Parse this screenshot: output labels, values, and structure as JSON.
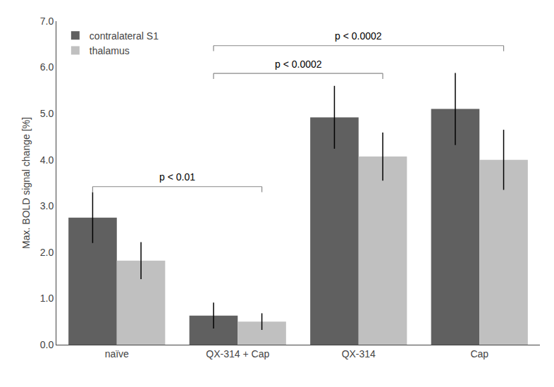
{
  "chart_data": {
    "type": "bar",
    "categories": [
      "naïve",
      "QX-314 + Cap",
      "QX-314",
      "Cap"
    ],
    "series": [
      {
        "name": "contralateral S1",
        "color": "#606060",
        "values": [
          2.75,
          0.63,
          4.92,
          5.1
        ],
        "errors": [
          0.55,
          0.28,
          0.68,
          0.78
        ]
      },
      {
        "name": "thalamus",
        "color": "#c0c0c0",
        "values": [
          1.82,
          0.5,
          4.07,
          4.0
        ],
        "errors": [
          0.4,
          0.18,
          0.52,
          0.65
        ]
      }
    ],
    "ylabel": "Max. BOLD signal change [%]",
    "ylim": [
      0,
      7.0
    ],
    "yticks": [
      {
        "value": 0,
        "label": "0.0"
      },
      {
        "value": 1,
        "label": "1.0"
      },
      {
        "value": 2,
        "label": "2.0"
      },
      {
        "value": 3,
        "label": "3.0"
      },
      {
        "value": 4,
        "label": "4.0"
      },
      {
        "value": 5,
        "label": "5.0"
      },
      {
        "value": 6,
        "label": "6.0"
      },
      {
        "value": 7,
        "label": "7.0"
      }
    ],
    "annotations": [
      {
        "text": "p < 0.01",
        "from": "naïve",
        "to": "QX-314 + Cap",
        "y": 3.3
      },
      {
        "text": "p < 0.0002",
        "from": "QX-314 + Cap",
        "to": "QX-314",
        "y": 5.75
      },
      {
        "text": "p < 0.0002",
        "from": "QX-314 + Cap",
        "to": "Cap",
        "y": 6.35
      }
    ],
    "legend": "upper left",
    "grid": false
  }
}
